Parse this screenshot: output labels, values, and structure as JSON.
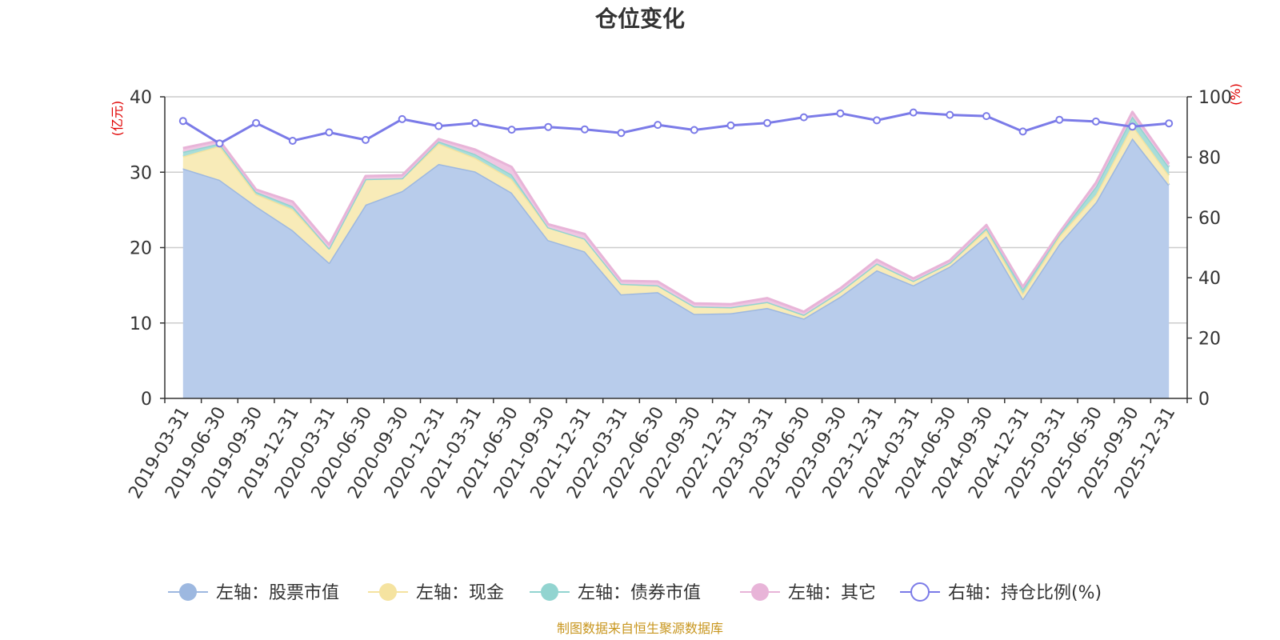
{
  "chart_data": {
    "type": "area",
    "title": "仓位变化",
    "left_unit": "(亿元)",
    "right_unit": "(%)",
    "categories": [
      "2019-03-31",
      "2019-06-30",
      "2019-09-30",
      "2019-12-31",
      "2020-03-31",
      "2020-06-30",
      "2020-09-30",
      "2020-12-31",
      "2021-03-31",
      "2021-06-30",
      "2021-09-30",
      "2021-12-31",
      "2022-03-31",
      "2022-06-30",
      "2022-09-30",
      "2022-12-31",
      "2023-03-31",
      "2023-06-30",
      "2023-09-30",
      "2023-12-31",
      "2024-03-31",
      "2024-06-30",
      "2024-09-30",
      "2024-12-31",
      "2025-03-31",
      "2025-06-30",
      "2025-09-30",
      "2025-12-31"
    ],
    "ylim_left": [
      0,
      40
    ],
    "yticks_left": [
      "0",
      "10",
      "20",
      "30",
      "40"
    ],
    "ylim_right": [
      0,
      100
    ],
    "yticks_right": [
      "0",
      "20",
      "40",
      "60",
      "80",
      "100"
    ],
    "grid": true,
    "legend_position": "bottom",
    "series": [
      {
        "name": "左轴：股票市值",
        "axis": "left",
        "color": "#9db8e0",
        "fill": "#b8cceb",
        "values": [
          30.5,
          29.0,
          25.5,
          22.3,
          18.0,
          25.7,
          27.5,
          31.1,
          30.1,
          27.3,
          21.0,
          19.5,
          13.8,
          14.1,
          11.2,
          11.3,
          12.0,
          10.6,
          13.5,
          17.0,
          15.0,
          17.5,
          21.5,
          13.2,
          20.5,
          26.0,
          34.5,
          28.3
        ]
      },
      {
        "name": "左轴：现金",
        "axis": "left",
        "color": "#f5e3a0",
        "fill": "#f8ebb8",
        "values": [
          1.6,
          4.5,
          1.6,
          2.8,
          1.9,
          3.4,
          1.7,
          2.7,
          1.8,
          1.8,
          1.7,
          1.7,
          1.4,
          0.9,
          1.0,
          0.8,
          0.8,
          0.5,
          0.7,
          0.9,
          0.6,
          0.5,
          0.8,
          0.7,
          1.0,
          1.0,
          1.7,
          1.3
        ]
      },
      {
        "name": "左轴：债券市值",
        "axis": "left",
        "color": "#92d4d0",
        "fill": "#a8ddd9",
        "values": [
          0.6,
          0.3,
          0.3,
          0.4,
          0,
          0,
          0,
          0.3,
          0.5,
          0.6,
          0,
          0,
          0,
          0,
          0,
          0,
          0,
          0,
          0,
          0,
          0,
          0,
          0.3,
          0.6,
          0.3,
          1.1,
          1.2,
          1.1
        ]
      },
      {
        "name": "左轴：其它",
        "axis": "left",
        "color": "#e8b4d8",
        "fill": "#efc6e2",
        "values": [
          0.5,
          0.4,
          0.3,
          0.6,
          0.5,
          0.4,
          0.4,
          0.3,
          0.6,
          1.0,
          0.4,
          0.6,
          0.4,
          0.5,
          0.4,
          0.4,
          0.5,
          0.4,
          0.4,
          0.5,
          0.3,
          0.3,
          0.4,
          0.3,
          0.2,
          0.5,
          0.6,
          0.4
        ]
      },
      {
        "name": "右轴：持仓比例(%)",
        "axis": "right",
        "color": "#7b7be8",
        "values": [
          92.0,
          84.5,
          91.3,
          85.4,
          88.2,
          85.7,
          92.6,
          90.3,
          91.3,
          89.1,
          90.0,
          89.2,
          88.0,
          90.7,
          89.0,
          90.5,
          91.3,
          93.2,
          94.5,
          92.2,
          94.8,
          94.0,
          93.6,
          88.5,
          92.4,
          91.8,
          90.1,
          91.2
        ]
      }
    ]
  },
  "footer": "制图数据来自恒生聚源数据库"
}
